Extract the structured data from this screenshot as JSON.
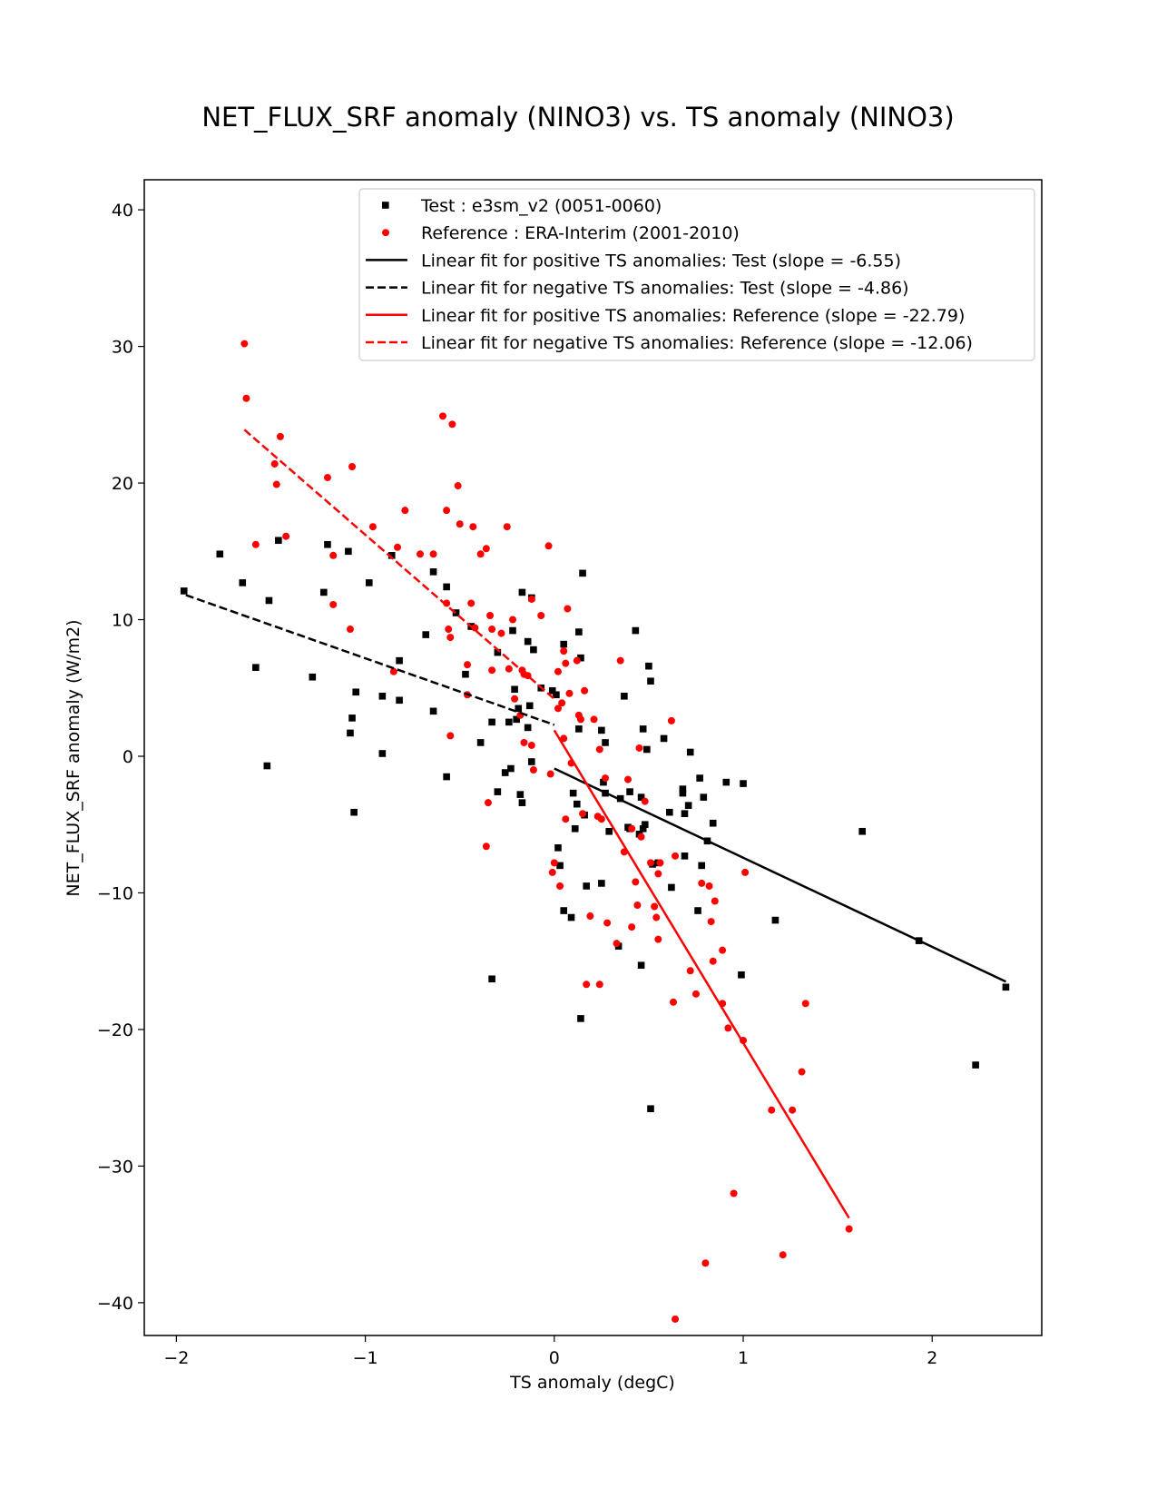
{
  "chart_data": {
    "type": "scatter",
    "title": "NET_FLUX_SRF anomaly (NINO3) vs. TS anomaly (NINO3)",
    "xlabel": "TS anomaly (degC)",
    "ylabel": "NET_FLUX_SRF anomaly (W/m2)",
    "xlim": [
      -2.17,
      2.58
    ],
    "ylim": [
      -42.4,
      42.2
    ],
    "xticks": [
      -2,
      -1,
      0,
      1,
      2
    ],
    "yticks": [
      -40,
      -30,
      -20,
      -10,
      0,
      10,
      20,
      30,
      40
    ],
    "xtick_labels": [
      "−2",
      "−1",
      "0",
      "1",
      "2"
    ],
    "ytick_labels": [
      "−40",
      "−30",
      "−20",
      "−10",
      "0",
      "10",
      "20",
      "30",
      "40"
    ],
    "grid": false,
    "legend_position": "upper-right",
    "colors": {
      "test": "#000000",
      "reference": "#ff0000"
    },
    "legend": [
      {
        "label": "Test : e3sm_v2 (0051-0060)",
        "kind": "square-marker",
        "color": "#000000"
      },
      {
        "label": "Reference : ERA-Interim (2001-2010)",
        "kind": "circle-marker",
        "color": "#ff0000"
      },
      {
        "label": "Linear fit for positive TS anomalies: Test (slope = -6.55)",
        "kind": "solid-line",
        "color": "#000000"
      },
      {
        "label": "Linear fit for negative TS anomalies: Test (slope = -4.86)",
        "kind": "dashed-line",
        "color": "#000000"
      },
      {
        "label": "Linear fit for positive TS anomalies: Reference (slope = -22.79)",
        "kind": "solid-line",
        "color": "#ff0000"
      },
      {
        "label": "Linear fit for negative TS anomalies: Reference (slope = -12.06)",
        "kind": "dashed-line",
        "color": "#ff0000"
      }
    ],
    "fit_lines": [
      {
        "name": "test-positive-fit",
        "color": "#000000",
        "dash": false,
        "x": [
          0.0,
          2.39
        ],
        "y": [
          -0.9,
          -16.5
        ]
      },
      {
        "name": "test-negative-fit",
        "color": "#000000",
        "dash": true,
        "x": [
          -1.95,
          0.0
        ],
        "y": [
          11.8,
          2.3
        ]
      },
      {
        "name": "reference-positive-fit",
        "color": "#ff0000",
        "dash": false,
        "x": [
          0.0,
          1.56
        ],
        "y": [
          1.9,
          -33.8
        ]
      },
      {
        "name": "reference-negative-fit",
        "color": "#ff0000",
        "dash": true,
        "x": [
          -1.64,
          0.0
        ],
        "y": [
          23.9,
          4.2
        ]
      }
    ],
    "series": [
      {
        "name": "Test : e3sm_v2 (0051-0060)",
        "marker": "square",
        "color": "#000000",
        "points": [
          [
            -1.96,
            12.1
          ],
          [
            -1.77,
            14.8
          ],
          [
            -1.65,
            12.7
          ],
          [
            -1.58,
            6.5
          ],
          [
            -1.52,
            -0.7
          ],
          [
            -1.51,
            11.4
          ],
          [
            -1.46,
            15.8
          ],
          [
            -1.28,
            5.8
          ],
          [
            -1.22,
            12.0
          ],
          [
            -1.2,
            15.5
          ],
          [
            -1.09,
            15.0
          ],
          [
            -1.08,
            1.7
          ],
          [
            -1.07,
            2.8
          ],
          [
            -1.06,
            -4.1
          ],
          [
            -1.05,
            4.7
          ],
          [
            -0.98,
            12.7
          ],
          [
            -0.91,
            0.2
          ],
          [
            -0.91,
            4.4
          ],
          [
            -0.86,
            14.7
          ],
          [
            -0.82,
            7.0
          ],
          [
            -0.82,
            4.1
          ],
          [
            -0.68,
            8.9
          ],
          [
            -0.64,
            13.5
          ],
          [
            -0.64,
            3.3
          ],
          [
            -0.57,
            12.4
          ],
          [
            -0.57,
            -1.5
          ],
          [
            -0.52,
            10.5
          ],
          [
            -0.47,
            6.0
          ],
          [
            -0.44,
            9.5
          ],
          [
            -0.39,
            1.0
          ],
          [
            -0.33,
            2.5
          ],
          [
            -0.33,
            -16.3
          ],
          [
            -0.3,
            7.6
          ],
          [
            -0.3,
            -2.6
          ],
          [
            -0.26,
            -1.2
          ],
          [
            -0.24,
            2.5
          ],
          [
            -0.23,
            -0.9
          ],
          [
            -0.22,
            9.2
          ],
          [
            -0.21,
            4.9
          ],
          [
            -0.2,
            2.7
          ],
          [
            -0.19,
            3.5
          ],
          [
            -0.18,
            -2.8
          ],
          [
            -0.17,
            -3.4
          ],
          [
            -0.17,
            12.0
          ],
          [
            -0.14,
            8.4
          ],
          [
            -0.14,
            2.1
          ],
          [
            -0.13,
            3.7
          ],
          [
            -0.12,
            11.6
          ],
          [
            -0.12,
            -0.4
          ],
          [
            -0.11,
            7.8
          ],
          [
            -0.07,
            5.0
          ],
          [
            -0.01,
            4.8
          ],
          [
            0.01,
            4.5
          ],
          [
            0.02,
            -6.7
          ],
          [
            0.03,
            -8.0
          ],
          [
            0.05,
            -11.3
          ],
          [
            0.05,
            8.2
          ],
          [
            0.09,
            -11.8
          ],
          [
            0.1,
            -2.7
          ],
          [
            0.11,
            -5.3
          ],
          [
            0.12,
            -3.5
          ],
          [
            0.13,
            9.1
          ],
          [
            0.13,
            2.0
          ],
          [
            0.14,
            7.2
          ],
          [
            0.14,
            -19.2
          ],
          [
            0.15,
            13.4
          ],
          [
            0.16,
            -4.3
          ],
          [
            0.17,
            -9.5
          ],
          [
            0.25,
            1.9
          ],
          [
            0.25,
            -9.3
          ],
          [
            0.26,
            -1.9
          ],
          [
            0.27,
            1.0
          ],
          [
            0.27,
            -2.7
          ],
          [
            0.29,
            -5.5
          ],
          [
            0.34,
            -13.9
          ],
          [
            0.35,
            -3.1
          ],
          [
            0.37,
            4.4
          ],
          [
            0.39,
            -5.2
          ],
          [
            0.4,
            -5.3
          ],
          [
            0.4,
            -2.6
          ],
          [
            0.43,
            9.2
          ],
          [
            0.45,
            -5.7
          ],
          [
            0.46,
            -3.0
          ],
          [
            0.46,
            -15.3
          ],
          [
            0.47,
            -5.3
          ],
          [
            0.47,
            2.0
          ],
          [
            0.48,
            -5.0
          ],
          [
            0.49,
            0.5
          ],
          [
            0.5,
            6.6
          ],
          [
            0.51,
            5.5
          ],
          [
            0.51,
            -25.8
          ],
          [
            0.52,
            -7.9
          ],
          [
            0.55,
            -7.8
          ],
          [
            0.58,
            1.3
          ],
          [
            0.61,
            -4.1
          ],
          [
            0.62,
            -9.6
          ],
          [
            0.68,
            -2.4
          ],
          [
            0.68,
            -2.7
          ],
          [
            0.69,
            -4.2
          ],
          [
            0.69,
            -7.3
          ],
          [
            0.71,
            -3.6
          ],
          [
            0.72,
            0.3
          ],
          [
            0.76,
            -11.3
          ],
          [
            0.77,
            -1.6
          ],
          [
            0.78,
            -8.0
          ],
          [
            0.79,
            -3.0
          ],
          [
            0.81,
            -6.2
          ],
          [
            0.84,
            -4.9
          ],
          [
            0.91,
            -1.9
          ],
          [
            0.99,
            -16.0
          ],
          [
            1.0,
            -2.0
          ],
          [
            1.17,
            -12.0
          ],
          [
            1.63,
            -5.5
          ],
          [
            1.93,
            -13.5
          ],
          [
            2.23,
            -22.6
          ],
          [
            2.39,
            -16.9
          ]
        ]
      },
      {
        "name": "Reference : ERA-Interim (2001-2010)",
        "marker": "circle",
        "color": "#ff0000",
        "points": [
          [
            -1.64,
            30.2
          ],
          [
            -1.63,
            26.2
          ],
          [
            -1.58,
            15.5
          ],
          [
            -1.48,
            21.4
          ],
          [
            -1.47,
            19.9
          ],
          [
            -1.45,
            23.4
          ],
          [
            -1.42,
            16.1
          ],
          [
            -1.2,
            20.4
          ],
          [
            -1.17,
            14.7
          ],
          [
            -1.17,
            11.1
          ],
          [
            -1.08,
            9.3
          ],
          [
            -1.07,
            21.2
          ],
          [
            -0.96,
            16.8
          ],
          [
            -0.85,
            6.2
          ],
          [
            -0.83,
            15.3
          ],
          [
            -0.79,
            18.0
          ],
          [
            -0.71,
            14.8
          ],
          [
            -0.64,
            14.8
          ],
          [
            -0.59,
            24.9
          ],
          [
            -0.57,
            18.0
          ],
          [
            -0.57,
            11.2
          ],
          [
            -0.56,
            9.3
          ],
          [
            -0.55,
            8.7
          ],
          [
            -0.55,
            1.5
          ],
          [
            -0.54,
            24.3
          ],
          [
            -0.51,
            19.8
          ],
          [
            -0.5,
            17.0
          ],
          [
            -0.46,
            6.7
          ],
          [
            -0.46,
            4.5
          ],
          [
            -0.44,
            11.2
          ],
          [
            -0.43,
            16.8
          ],
          [
            -0.42,
            9.4
          ],
          [
            -0.39,
            14.8
          ],
          [
            -0.36,
            15.2
          ],
          [
            -0.36,
            -6.6
          ],
          [
            -0.35,
            -3.4
          ],
          [
            -0.34,
            10.3
          ],
          [
            -0.33,
            9.3
          ],
          [
            -0.33,
            6.3
          ],
          [
            -0.28,
            9.0
          ],
          [
            -0.25,
            16.8
          ],
          [
            -0.24,
            6.4
          ],
          [
            -0.22,
            10.0
          ],
          [
            -0.21,
            4.2
          ],
          [
            -0.18,
            3.0
          ],
          [
            -0.17,
            6.3
          ],
          [
            -0.16,
            6.0
          ],
          [
            -0.16,
            1.0
          ],
          [
            -0.14,
            5.9
          ],
          [
            -0.12,
            11.5
          ],
          [
            -0.12,
            0.8
          ],
          [
            -0.11,
            -1.0
          ],
          [
            -0.07,
            10.3
          ],
          [
            -0.03,
            15.4
          ],
          [
            -0.02,
            -1.3
          ],
          [
            -0.01,
            -8.5
          ],
          [
            0.0,
            -7.8
          ],
          [
            0.02,
            6.2
          ],
          [
            0.02,
            3.5
          ],
          [
            0.03,
            -9.5
          ],
          [
            0.04,
            3.9
          ],
          [
            0.05,
            1.3
          ],
          [
            0.05,
            7.7
          ],
          [
            0.06,
            6.8
          ],
          [
            0.06,
            -4.6
          ],
          [
            0.07,
            10.8
          ],
          [
            0.08,
            4.6
          ],
          [
            0.09,
            -0.5
          ],
          [
            0.12,
            7.0
          ],
          [
            0.13,
            3.0
          ],
          [
            0.14,
            2.7
          ],
          [
            0.15,
            -4.2
          ],
          [
            0.16,
            4.8
          ],
          [
            0.17,
            -16.7
          ],
          [
            0.19,
            -11.7
          ],
          [
            0.21,
            2.7
          ],
          [
            0.23,
            -4.4
          ],
          [
            0.24,
            0.5
          ],
          [
            0.24,
            -16.7
          ],
          [
            0.25,
            -4.6
          ],
          [
            0.27,
            -1.6
          ],
          [
            0.28,
            -12.2
          ],
          [
            0.33,
            -13.7
          ],
          [
            0.35,
            7.0
          ],
          [
            0.37,
            -7.0
          ],
          [
            0.39,
            -1.7
          ],
          [
            0.41,
            -5.3
          ],
          [
            0.41,
            -12.5
          ],
          [
            0.43,
            -9.2
          ],
          [
            0.44,
            -10.9
          ],
          [
            0.45,
            0.6
          ],
          [
            0.46,
            -5.9
          ],
          [
            0.48,
            -3.3
          ],
          [
            0.51,
            -7.8
          ],
          [
            0.53,
            -11.0
          ],
          [
            0.54,
            -11.8
          ],
          [
            0.55,
            -13.4
          ],
          [
            0.55,
            -8.6
          ],
          [
            0.56,
            -7.8
          ],
          [
            0.62,
            2.6
          ],
          [
            0.63,
            -18.0
          ],
          [
            0.64,
            -7.3
          ],
          [
            0.64,
            -41.2
          ],
          [
            0.72,
            -15.7
          ],
          [
            0.75,
            -17.4
          ],
          [
            0.78,
            -9.3
          ],
          [
            0.8,
            -37.1
          ],
          [
            0.82,
            -9.5
          ],
          [
            0.83,
            -12.1
          ],
          [
            0.84,
            -15.0
          ],
          [
            0.85,
            -10.6
          ],
          [
            0.89,
            -14.2
          ],
          [
            0.89,
            -18.1
          ],
          [
            0.92,
            -19.9
          ],
          [
            0.95,
            -32.0
          ],
          [
            1.0,
            -20.8
          ],
          [
            1.01,
            -8.5
          ],
          [
            1.15,
            -25.9
          ],
          [
            1.21,
            -36.5
          ],
          [
            1.26,
            -25.9
          ],
          [
            1.31,
            -23.1
          ],
          [
            1.33,
            -18.1
          ],
          [
            1.56,
            -34.6
          ]
        ]
      }
    ]
  }
}
